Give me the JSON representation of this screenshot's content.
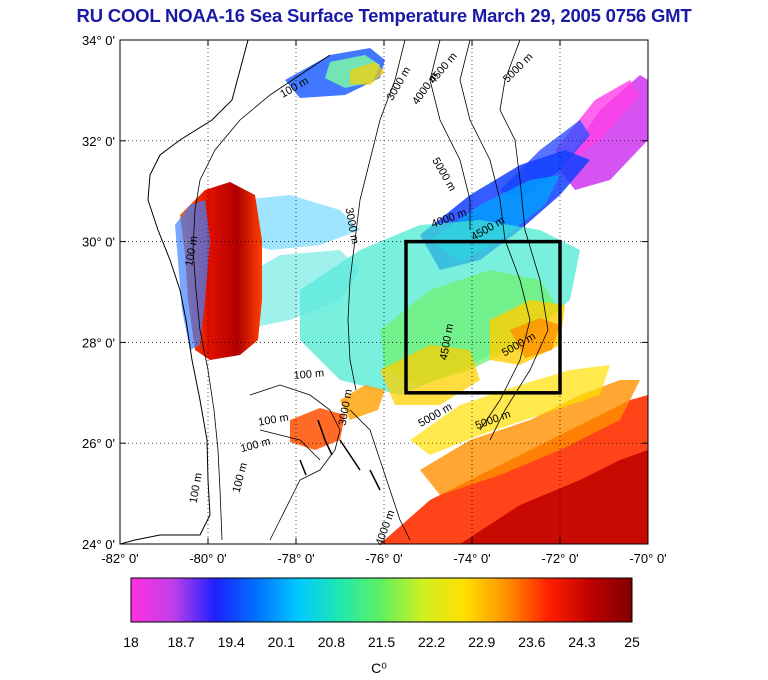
{
  "title": "RU COOL  NOAA-16 Sea Surface Temperature March 29, 2005 0756 GMT",
  "map": {
    "lon_range": [
      -82,
      -70
    ],
    "lat_range": [
      24,
      34
    ],
    "x_ticks": [
      {
        "value": -82,
        "label": "-82° 0'"
      },
      {
        "value": -80,
        "label": "-80° 0'"
      },
      {
        "value": -78,
        "label": "-78° 0'"
      },
      {
        "value": -76,
        "label": "-76° 0'"
      },
      {
        "value": -74,
        "label": "-74° 0'"
      },
      {
        "value": -72,
        "label": "-72° 0'"
      },
      {
        "value": -70,
        "label": "-70° 0'"
      }
    ],
    "y_ticks": [
      {
        "value": 34,
        "label": "34° 0'"
      },
      {
        "value": 32,
        "label": "32° 0'"
      },
      {
        "value": 30,
        "label": "30° 0'"
      },
      {
        "value": 28,
        "label": "28° 0'"
      },
      {
        "value": 26,
        "label": "26° 0'"
      },
      {
        "value": 24,
        "label": "24° 0'"
      }
    ],
    "grid": "dotted",
    "study_box": {
      "lon": [
        -75.5,
        -72
      ],
      "lat": [
        27,
        30
      ]
    },
    "contour_labels": [
      {
        "text": "100 m",
        "lon": -78.0,
        "lat": 33.0,
        "rot": -30
      },
      {
        "text": "3000 m",
        "lon": -75.6,
        "lat": 33.1,
        "rot": -60
      },
      {
        "text": "4000 m",
        "lon": -75.0,
        "lat": 33.0,
        "rot": -55
      },
      {
        "text": "4500 m",
        "lon": -74.6,
        "lat": 33.4,
        "rot": -50
      },
      {
        "text": "5000 m",
        "lon": -72.9,
        "lat": 33.4,
        "rot": -45
      },
      {
        "text": "5000 m",
        "lon": -74.7,
        "lat": 31.3,
        "rot": 60
      },
      {
        "text": "4000 m",
        "lon": -74.5,
        "lat": 30.4,
        "rot": -20
      },
      {
        "text": "4500 m",
        "lon": -73.6,
        "lat": 30.2,
        "rot": -30
      },
      {
        "text": "3000 m",
        "lon": -76.8,
        "lat": 30.3,
        "rot": 80
      },
      {
        "text": "100 m",
        "lon": -80.3,
        "lat": 29.8,
        "rot": -80
      },
      {
        "text": "100 m",
        "lon": -77.7,
        "lat": 27.3,
        "rot": -5
      },
      {
        "text": "100 m",
        "lon": -78.5,
        "lat": 26.4,
        "rot": -10
      },
      {
        "text": "100 m",
        "lon": -78.9,
        "lat": 25.9,
        "rot": -15
      },
      {
        "text": "100 m",
        "lon": -80.2,
        "lat": 25.1,
        "rot": -80
      },
      {
        "text": "100 m",
        "lon": -79.2,
        "lat": 25.3,
        "rot": -75
      },
      {
        "text": "3000 m",
        "lon": -76.8,
        "lat": 26.7,
        "rot": -80
      },
      {
        "text": "5000 m",
        "lon": -74.8,
        "lat": 26.5,
        "rot": -30
      },
      {
        "text": "5000 m",
        "lon": -73.5,
        "lat": 26.4,
        "rot": -20
      },
      {
        "text": "4500 m",
        "lon": -74.5,
        "lat": 28.0,
        "rot": -80
      },
      {
        "text": "5000 m",
        "lon": -72.9,
        "lat": 27.9,
        "rot": -30
      },
      {
        "text": "4000 m",
        "lon": -75.9,
        "lat": 24.3,
        "rot": -70
      }
    ]
  },
  "colorbar": {
    "unit_label": "C⁰",
    "tick_labels": [
      "18",
      "18.7",
      "19.4",
      "20.1",
      "20.8",
      "21.5",
      "22.2",
      "22.9",
      "23.6",
      "24.3",
      "25"
    ],
    "range": [
      18,
      25
    ],
    "colors": [
      "#ff30e0",
      "#c040e8",
      "#2020ff",
      "#0070ff",
      "#00c8ff",
      "#20e8b0",
      "#60f060",
      "#d0f020",
      "#ffe000",
      "#ff9000",
      "#ff2000",
      "#c00000",
      "#800000"
    ]
  }
}
